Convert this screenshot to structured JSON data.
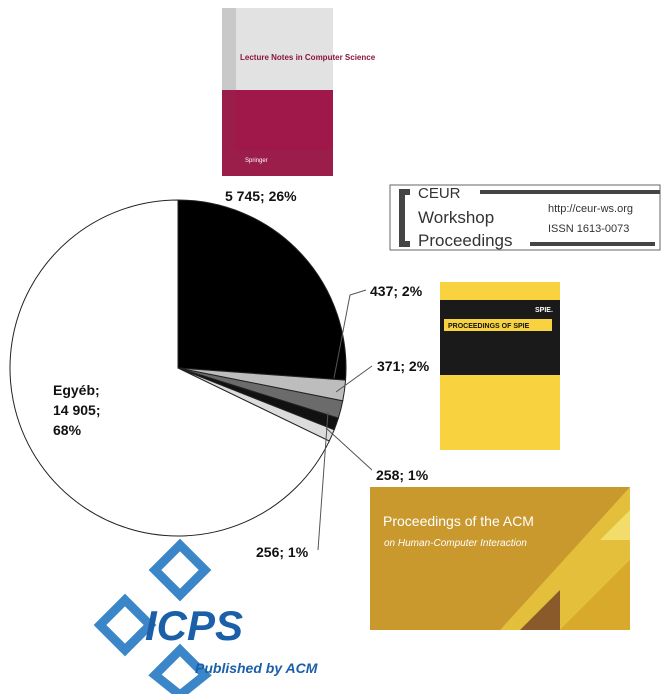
{
  "chart_data": {
    "type": "pie",
    "categories": [
      null,
      null,
      null,
      null,
      null,
      "Egyéb;"
    ],
    "values": [
      5745,
      437,
      371,
      258,
      256,
      14905
    ],
    "value_labels": [
      "5 745; 26%",
      "437; 2%",
      "371; 2%",
      "258; 1%",
      "256; 1%",
      "14 905; 68%"
    ],
    "colors": [
      "#000000",
      "#bdbdbd",
      "#6b6b6b",
      "#111111",
      "#dcdcdc",
      "#ffffff"
    ]
  },
  "logos": {
    "lncs": {
      "title": "Lecture Notes in Computer Science",
      "publisher": "Springer"
    },
    "ceur": {
      "name": "CEUR",
      "line1": "Workshop",
      "line2": "Proceedings",
      "url": "http://ceur-ws.org",
      "issn": "ISSN 1613-0073"
    },
    "spie": {
      "brand": "SPIE.",
      "title": "PROCEEDINGS OF SPIE"
    },
    "acm": {
      "title": "Proceedings of the ACM",
      "subtitle": "on Human-Computer Interaction"
    },
    "icps": {
      "name": "ICPS",
      "tagline": "Published by ACM"
    }
  }
}
